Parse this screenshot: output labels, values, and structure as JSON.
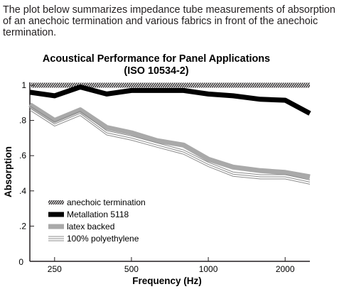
{
  "intro_text": "The plot below summarizes impedance tube measurements of absorption of an anechoic termination and various fabrics in front of the anechoic termination.",
  "chart_data": {
    "type": "line",
    "title": "Acoustical Performance for Panel Applications",
    "subtitle": "(ISO 10534-2)",
    "xlabel": "Frequency (Hz)",
    "ylabel": "Absorption",
    "x_scale": "log",
    "xlim": [
      200,
      2500
    ],
    "ylim": [
      0,
      1
    ],
    "x_ticks": [
      250,
      500,
      1000,
      2000
    ],
    "x_tick_labels": [
      "250",
      "500",
      "1000",
      "2000"
    ],
    "y_ticks": [
      0,
      0.2,
      0.4,
      0.6,
      0.8,
      1
    ],
    "y_tick_labels": [
      "0",
      ".2",
      ".4",
      ".6",
      ".8",
      "1"
    ],
    "grid": false,
    "legend_position": "lower-left",
    "x": [
      200,
      250,
      315,
      400,
      500,
      630,
      800,
      1000,
      1250,
      1600,
      2000,
      2500
    ],
    "series": [
      {
        "name": "anechoic termination",
        "style": "hatched",
        "color": "#231f20",
        "values": [
          1.0,
          1.0,
          1.0,
          1.0,
          1.0,
          1.0,
          1.0,
          1.0,
          1.0,
          1.0,
          1.0,
          1.0
        ]
      },
      {
        "name": "Metallation 5118",
        "style": "thick",
        "color": "#000000",
        "values": [
          0.96,
          0.94,
          0.99,
          0.95,
          0.97,
          0.97,
          0.97,
          0.95,
          0.94,
          0.92,
          0.915,
          0.84
        ]
      },
      {
        "name": "latex backed",
        "style": "thick",
        "color": "#a9a9a9",
        "values": [
          0.89,
          0.8,
          0.86,
          0.76,
          0.73,
          0.685,
          0.66,
          0.58,
          0.535,
          0.515,
          0.505,
          0.48
        ]
      },
      {
        "name": "100% polyethylene",
        "style": "triple",
        "color": "#8c8c8c",
        "values": [
          0.87,
          0.78,
          0.84,
          0.73,
          0.7,
          0.66,
          0.62,
          0.55,
          0.495,
          0.48,
          0.48,
          0.45
        ]
      }
    ]
  }
}
